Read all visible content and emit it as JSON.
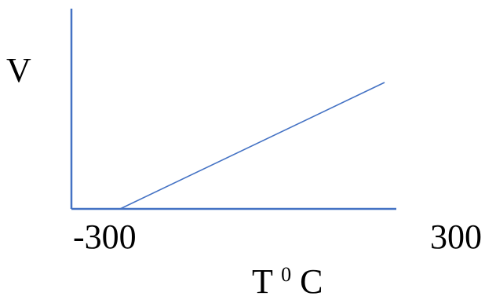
{
  "chart_data": {
    "type": "line",
    "ylabel": "V",
    "xlabel_main": "T",
    "xlabel_sup": "0",
    "xlabel_suffix": "C",
    "x_tick_labels": [
      "-300",
      "300"
    ],
    "xlim": [
      -300,
      300
    ],
    "ylim": [
      0,
      1
    ],
    "grid": false,
    "series": [
      {
        "x": [
          -300,
          300
        ],
        "y": [
          0,
          1
        ]
      }
    ],
    "colors": {
      "axis": "#4472c4",
      "line": "#4472c4",
      "text": "#000000"
    }
  }
}
